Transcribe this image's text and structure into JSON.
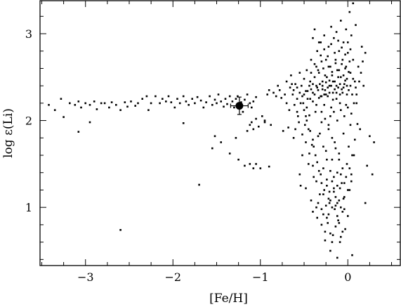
{
  "chart_data": {
    "type": "scatter",
    "title": "",
    "xlabel": "[Fe/H]",
    "ylabel": "log ε(Li)",
    "xlim": [
      -3.52,
      0.6
    ],
    "ylim": [
      0.33,
      3.38
    ],
    "grid": false,
    "legend": "none",
    "x_ticks": [
      {
        "v": -3,
        "label": "−3"
      },
      {
        "v": -2,
        "label": "−2"
      },
      {
        "v": -1,
        "label": "−1"
      },
      {
        "v": 0,
        "label": "0"
      }
    ],
    "y_ticks": [
      {
        "v": 1,
        "label": "1"
      },
      {
        "v": 2,
        "label": "2"
      },
      {
        "v": 3,
        "label": "3"
      }
    ],
    "x_minor_step": 0.25,
    "y_minor_step": 0.2,
    "highlight": {
      "x": -1.24,
      "y": 2.17,
      "xerr": 0.1,
      "yerr": 0.1
    },
    "colors": {
      "points": "#000000",
      "axes": "#000000"
    },
    "points_plateau": [
      [
        -3.42,
        2.18
      ],
      [
        -3.35,
        2.12
      ],
      [
        -3.28,
        2.25
      ],
      [
        -3.25,
        2.04
      ],
      [
        -3.18,
        2.2
      ],
      [
        -3.12,
        2.18
      ],
      [
        -3.08,
        2.22
      ],
      [
        -3.05,
        2.15
      ],
      [
        -3.0,
        2.2
      ],
      [
        -2.95,
        2.18
      ],
      [
        -2.9,
        2.22
      ],
      [
        -2.87,
        2.13
      ],
      [
        -2.82,
        2.2
      ],
      [
        -2.78,
        2.2
      ],
      [
        -2.73,
        2.15
      ],
      [
        -2.7,
        2.21
      ],
      [
        -2.65,
        2.18
      ],
      [
        -2.6,
        2.12
      ],
      [
        -2.55,
        2.21
      ],
      [
        -2.52,
        2.16
      ],
      [
        -2.48,
        2.22
      ],
      [
        -2.43,
        2.17
      ],
      [
        -2.4,
        2.2
      ],
      [
        -2.35,
        2.25
      ],
      [
        -2.3,
        2.28
      ],
      [
        -2.28,
        2.12
      ],
      [
        -2.25,
        2.2
      ],
      [
        -2.2,
        2.28
      ],
      [
        -2.15,
        2.2
      ],
      [
        -2.12,
        2.25
      ],
      [
        -2.08,
        2.22
      ],
      [
        -2.05,
        2.28
      ],
      [
        -2.02,
        2.21
      ],
      [
        -1.98,
        2.15
      ],
      [
        -1.95,
        2.25
      ],
      [
        -1.92,
        2.2
      ],
      [
        -1.88,
        2.28
      ],
      [
        -1.85,
        2.22
      ],
      [
        -1.82,
        2.18
      ],
      [
        -1.78,
        2.25
      ],
      [
        -1.75,
        2.2
      ],
      [
        -1.72,
        2.27
      ],
      [
        -1.68,
        2.23
      ],
      [
        -1.65,
        2.15
      ],
      [
        -1.62,
        2.21
      ],
      [
        -1.58,
        2.28
      ],
      [
        -1.55,
        2.18
      ],
      [
        -1.52,
        2.24
      ],
      [
        -1.5,
        2.2
      ],
      [
        -1.48,
        2.3
      ],
      [
        -1.45,
        2.22
      ],
      [
        -1.42,
        2.16
      ],
      [
        -1.4,
        2.25
      ],
      [
        -1.38,
        2.19
      ],
      [
        -1.35,
        2.28
      ],
      [
        -1.32,
        2.22
      ],
      [
        -1.3,
        2.15
      ],
      [
        -1.28,
        2.25
      ],
      [
        -1.26,
        2.28
      ],
      [
        -1.22,
        2.21
      ],
      [
        -1.2,
        2.1
      ],
      [
        -1.18,
        2.24
      ],
      [
        -1.15,
        2.3
      ],
      [
        -1.12,
        2.2
      ],
      [
        -1.1,
        2.15
      ],
      [
        -1.08,
        2.22
      ],
      [
        -1.05,
        2.27
      ]
    ],
    "points_outliers": [
      [
        -3.08,
        1.87
      ],
      [
        -2.95,
        1.98
      ],
      [
        -2.6,
        0.74
      ],
      [
        -1.88,
        1.97
      ],
      [
        -1.7,
        1.26
      ],
      [
        -1.55,
        1.68
      ],
      [
        -1.52,
        1.82
      ],
      [
        -1.45,
        1.75
      ],
      [
        -1.35,
        1.62
      ],
      [
        -1.28,
        1.8
      ],
      [
        -1.25,
        1.55
      ],
      [
        -1.18,
        1.48
      ],
      [
        -1.15,
        1.88
      ],
      [
        -1.12,
        1.5
      ],
      [
        -1.08,
        1.45
      ],
      [
        -1.05,
        1.5
      ],
      [
        -1.0,
        1.45
      ],
      [
        -1.12,
        1.95
      ],
      [
        -1.1,
        1.98
      ],
      [
        -1.08,
        1.9
      ],
      [
        -1.05,
        2.02
      ],
      [
        -1.02,
        1.93
      ],
      [
        -0.98,
        2.05
      ],
      [
        -0.95,
        1.98
      ],
      [
        -0.9,
        1.47
      ],
      [
        0.05,
        0.45
      ],
      [
        -0.12,
        0.42
      ],
      [
        0.2,
        1.05
      ],
      [
        0.22,
        1.48
      ],
      [
        0.25,
        1.82
      ],
      [
        0.3,
        1.75
      ],
      [
        0.28,
        1.38
      ],
      [
        -0.42,
        1.08
      ],
      [
        -0.55,
        1.38
      ]
    ],
    "points_cloud": [
      [
        -0.95,
        2.0
      ],
      [
        -0.92,
        2.3
      ],
      [
        -0.9,
        2.35
      ],
      [
        -0.88,
        1.95
      ],
      [
        -0.85,
        2.32
      ],
      [
        -0.82,
        2.28
      ],
      [
        -0.8,
        2.4
      ],
      [
        -0.78,
        2.35
      ],
      [
        -0.76,
        2.26
      ],
      [
        -0.74,
        1.88
      ],
      [
        -0.72,
        2.3
      ],
      [
        -0.7,
        2.45
      ],
      [
        -0.68,
        1.92
      ],
      [
        -0.66,
        2.38
      ],
      [
        -0.65,
        2.52
      ],
      [
        -0.63,
        2.3
      ],
      [
        -0.62,
        1.8
      ],
      [
        -0.6,
        2.42
      ],
      [
        -0.58,
        2.25
      ],
      [
        -0.57,
        2.05
      ],
      [
        -0.55,
        2.55
      ],
      [
        -0.54,
        1.25
      ],
      [
        -0.53,
        2.4
      ],
      [
        -0.52,
        1.6
      ],
      [
        -0.51,
        2.2
      ],
      [
        -0.5,
        2.48
      ],
      [
        -0.49,
        1.95
      ],
      [
        -0.48,
        1.22
      ],
      [
        -0.47,
        2.58
      ],
      [
        -0.46,
        2.34
      ],
      [
        -0.45,
        1.5
      ],
      [
        -0.44,
        2.06
      ],
      [
        -0.43,
        2.45
      ],
      [
        -0.42,
        2.7
      ],
      [
        -0.41,
        1.72
      ],
      [
        -0.4,
        2.32
      ],
      [
        -0.4,
        2.95
      ],
      [
        -0.39,
        1.35
      ],
      [
        -0.38,
        2.5
      ],
      [
        -0.38,
        3.05
      ],
      [
        -0.37,
        2.1
      ],
      [
        -0.36,
        2.62
      ],
      [
        -0.36,
        1.0
      ],
      [
        -0.35,
        2.38
      ],
      [
        -0.35,
        0.88
      ],
      [
        -0.34,
        1.82
      ],
      [
        -0.33,
        2.55
      ],
      [
        -0.33,
        2.9
      ],
      [
        -0.32,
        1.15
      ],
      [
        -0.31,
        2.28
      ],
      [
        -0.31,
        2.75
      ],
      [
        -0.3,
        1.98
      ],
      [
        -0.3,
        0.98
      ],
      [
        -0.29,
        2.45
      ],
      [
        -0.28,
        2.6
      ],
      [
        -0.28,
        1.45
      ],
      [
        -0.27,
        2.18
      ],
      [
        -0.27,
        2.98
      ],
      [
        -0.26,
        0.72
      ],
      [
        -0.26,
        2.35
      ],
      [
        -0.25,
        1.65
      ],
      [
        -0.25,
        2.7
      ],
      [
        -0.24,
        2.5
      ],
      [
        -0.24,
        1.25
      ],
      [
        -0.23,
        2.28
      ],
      [
        -0.23,
        0.82
      ],
      [
        -0.22,
        2.85
      ],
      [
        -0.22,
        1.9
      ],
      [
        -0.21,
        2.4
      ],
      [
        -0.21,
        1.05
      ],
      [
        -0.2,
        2.62
      ],
      [
        -0.2,
        0.5
      ],
      [
        -0.19,
        2.15
      ],
      [
        -0.19,
        3.08
      ],
      [
        -0.18,
        1.55
      ],
      [
        -0.18,
        2.52
      ],
      [
        -0.17,
        0.68
      ],
      [
        -0.17,
        2.32
      ],
      [
        -0.16,
        2.95
      ],
      [
        -0.16,
        1.22
      ],
      [
        -0.15,
        2.45
      ],
      [
        -0.15,
        1.75
      ],
      [
        -0.14,
        2.7
      ],
      [
        -0.14,
        1.02
      ],
      [
        -0.13,
        2.25
      ],
      [
        -0.13,
        3.02
      ],
      [
        -0.12,
        1.4
      ],
      [
        -0.12,
        2.58
      ],
      [
        -0.11,
        0.85
      ],
      [
        -0.11,
        2.38
      ],
      [
        -0.1,
        2.8
      ],
      [
        -0.1,
        1.62
      ],
      [
        -0.09,
        2.2
      ],
      [
        -0.09,
        0.6
      ],
      [
        -0.08,
        2.5
      ],
      [
        -0.08,
        3.15
      ],
      [
        -0.07,
        1.28
      ],
      [
        -0.07,
        2.65
      ],
      [
        -0.06,
        0.95
      ],
      [
        -0.06,
        2.32
      ],
      [
        -0.05,
        1.85
      ],
      [
        -0.05,
        2.9
      ],
      [
        -0.04,
        2.42
      ],
      [
        -0.04,
        1.12
      ],
      [
        -0.03,
        2.6
      ],
      [
        -0.03,
        0.75
      ],
      [
        -0.02,
        2.18
      ],
      [
        -0.02,
        3.05
      ],
      [
        -0.01,
        1.5
      ],
      [
        -0.01,
        2.48
      ],
      [
        0.0,
        0.9
      ],
      [
        0.0,
        2.78
      ],
      [
        0.01,
        1.7
      ],
      [
        0.01,
        2.35
      ],
      [
        0.02,
        3.25
      ],
      [
        0.02,
        1.2
      ],
      [
        0.03,
        2.55
      ],
      [
        0.03,
        1.95
      ],
      [
        0.04,
        2.98
      ],
      [
        0.04,
        1.38
      ],
      [
        0.05,
        2.3
      ],
      [
        0.06,
        2.7
      ],
      [
        0.06,
        3.35
      ],
      [
        0.07,
        1.6
      ],
      [
        0.08,
        2.45
      ],
      [
        0.09,
        3.1
      ],
      [
        0.1,
        2.2
      ],
      [
        0.12,
        2.62
      ],
      [
        0.14,
        1.9
      ],
      [
        0.16,
        2.85
      ],
      [
        0.18,
        2.4
      ],
      [
        -0.62,
        2.35
      ],
      [
        -0.58,
        2.38
      ],
      [
        -0.55,
        2.32
      ],
      [
        -0.52,
        2.28
      ],
      [
        -0.48,
        2.34
      ],
      [
        -0.46,
        2.25
      ],
      [
        -0.44,
        2.4
      ],
      [
        -0.42,
        2.36
      ],
      [
        -0.4,
        2.22
      ],
      [
        -0.38,
        2.3
      ],
      [
        -0.36,
        2.4
      ],
      [
        -0.34,
        2.35
      ],
      [
        -0.32,
        2.42
      ],
      [
        -0.3,
        2.28
      ],
      [
        -0.29,
        2.36
      ],
      [
        -0.27,
        2.3
      ],
      [
        -0.25,
        2.44
      ],
      [
        -0.23,
        2.38
      ],
      [
        -0.21,
        2.32
      ],
      [
        -0.19,
        2.4
      ],
      [
        -0.17,
        2.45
      ],
      [
        -0.15,
        2.36
      ],
      [
        -0.13,
        2.4
      ],
      [
        -0.11,
        2.5
      ],
      [
        -0.09,
        2.42
      ],
      [
        -0.07,
        2.36
      ],
      [
        -0.05,
        2.52
      ],
      [
        -0.03,
        2.46
      ],
      [
        -0.01,
        2.4
      ],
      [
        0.01,
        2.56
      ],
      [
        -0.45,
        1.9
      ],
      [
        -0.4,
        1.78
      ],
      [
        -0.37,
        1.6
      ],
      [
        -0.33,
        1.42
      ],
      [
        -0.3,
        1.28
      ],
      [
        -0.28,
        1.15
      ],
      [
        -0.25,
        1.02
      ],
      [
        -0.22,
        0.92
      ],
      [
        -0.2,
        1.08
      ],
      [
        -0.18,
        1.0
      ],
      [
        -0.15,
        0.98
      ],
      [
        -0.12,
        1.05
      ],
      [
        -0.1,
        0.82
      ],
      [
        -0.08,
        1.0
      ],
      [
        -0.3,
        2.1
      ],
      [
        -0.26,
        2.02
      ],
      [
        -0.22,
        1.95
      ],
      [
        -0.18,
        1.8
      ],
      [
        -0.14,
        1.68
      ],
      [
        -0.1,
        1.55
      ],
      [
        -0.06,
        1.45
      ],
      [
        -0.02,
        1.35
      ],
      [
        0.02,
        1.45
      ],
      [
        0.05,
        1.6
      ],
      [
        0.08,
        1.78
      ],
      [
        0.11,
        1.96
      ],
      [
        -0.5,
        2.12
      ],
      [
        -0.47,
        2.0
      ],
      [
        -0.43,
        1.88
      ],
      [
        -0.39,
        1.7
      ],
      [
        -0.35,
        1.52
      ],
      [
        -0.31,
        1.38
      ],
      [
        -0.27,
        1.2
      ],
      [
        -0.24,
        1.32
      ],
      [
        -0.21,
        1.18
      ],
      [
        -0.18,
        1.3
      ],
      [
        -0.14,
        1.12
      ],
      [
        -0.09,
        1.22
      ],
      [
        -0.05,
        1.1
      ],
      [
        -0.2,
        2.05
      ],
      [
        -0.16,
        2.1
      ],
      [
        -0.12,
        2.0
      ],
      [
        -0.08,
        2.12
      ],
      [
        -0.04,
        2.05
      ],
      [
        0.0,
        2.15
      ],
      [
        0.04,
        2.08
      ],
      [
        0.07,
        2.2
      ],
      [
        0.1,
        2.3
      ],
      [
        0.13,
        2.45
      ],
      [
        0.15,
        2.55
      ],
      [
        0.17,
        2.68
      ],
      [
        0.2,
        2.78
      ],
      [
        -0.35,
        2.8
      ],
      [
        -0.31,
        2.9
      ],
      [
        -0.27,
        2.82
      ],
      [
        -0.23,
        2.74
      ],
      [
        -0.19,
        2.88
      ],
      [
        -0.15,
        2.78
      ],
      [
        -0.11,
        2.92
      ],
      [
        -0.07,
        2.84
      ],
      [
        -0.03,
        2.76
      ],
      [
        0.0,
        2.9
      ],
      [
        0.03,
        2.82
      ],
      [
        -0.42,
        2.55
      ],
      [
        -0.38,
        2.65
      ],
      [
        -0.34,
        2.58
      ],
      [
        -0.3,
        2.68
      ],
      [
        -0.26,
        2.52
      ],
      [
        -0.22,
        2.62
      ],
      [
        -0.18,
        2.56
      ],
      [
        -0.14,
        2.66
      ],
      [
        -0.1,
        2.58
      ],
      [
        -0.06,
        2.7
      ],
      [
        -0.02,
        2.62
      ],
      [
        0.02,
        2.68
      ],
      [
        -0.7,
        2.2
      ],
      [
        -0.67,
        2.12
      ],
      [
        -0.64,
        2.42
      ],
      [
        -0.61,
        2.18
      ],
      [
        -0.58,
        2.1
      ],
      [
        -0.54,
        2.2
      ],
      [
        -0.5,
        2.3
      ],
      [
        -0.47,
        2.15
      ],
      [
        -0.43,
        2.25
      ],
      [
        -0.4,
        2.42
      ],
      [
        -0.36,
        2.18
      ],
      [
        -0.33,
        2.26
      ],
      [
        -0.29,
        2.4
      ],
      [
        -0.25,
        2.3
      ],
      [
        -0.21,
        2.46
      ],
      [
        -0.17,
        2.24
      ],
      [
        -0.13,
        2.32
      ],
      [
        -0.09,
        2.3
      ],
      [
        -0.05,
        2.38
      ],
      [
        -0.01,
        2.3
      ],
      [
        0.03,
        2.4
      ],
      [
        0.06,
        2.48
      ],
      [
        0.09,
        2.38
      ],
      [
        -0.48,
        1.75
      ],
      [
        -0.44,
        1.62
      ],
      [
        -0.4,
        1.48
      ],
      [
        -0.36,
        1.3
      ],
      [
        -0.32,
        1.85
      ],
      [
        -0.28,
        1.7
      ],
      [
        -0.24,
        1.55
      ],
      [
        -0.2,
        1.42
      ],
      [
        -0.16,
        1.35
      ],
      [
        -0.12,
        1.25
      ],
      [
        -0.08,
        1.38
      ],
      [
        -0.04,
        1.28
      ],
      [
        0.0,
        1.2
      ],
      [
        0.04,
        1.3
      ],
      [
        -0.6,
        1.9
      ],
      [
        -0.56,
        1.98
      ],
      [
        -0.52,
        1.84
      ],
      [
        -0.48,
        2.05
      ],
      [
        -0.26,
        0.62
      ],
      [
        -0.2,
        0.7
      ],
      [
        -0.14,
        0.78
      ],
      [
        -0.08,
        0.66
      ],
      [
        -0.3,
        0.8
      ],
      [
        -0.24,
        0.88
      ],
      [
        -0.18,
        0.6
      ],
      [
        -0.12,
        0.9
      ],
      [
        -0.06,
        0.72
      ],
      [
        -0.4,
        0.95
      ],
      [
        -0.34,
        1.05
      ],
      [
        -0.28,
        0.92
      ],
      [
        -0.22,
        1.1
      ],
      [
        -0.16,
        1.18
      ],
      [
        -0.1,
        1.08
      ],
      [
        -0.04,
        0.98
      ]
    ]
  }
}
